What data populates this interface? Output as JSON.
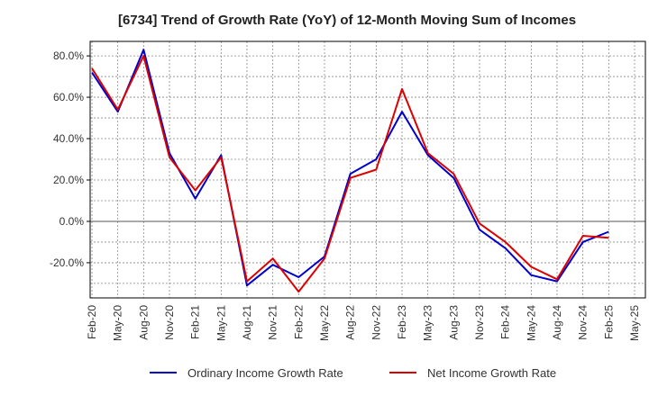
{
  "chart_data": {
    "type": "line",
    "title": "[6734]  Trend of Growth Rate (YoY) of 12-Month Moving Sum of Incomes",
    "xlabel": "",
    "ylabel": "",
    "x_tick_labels": [
      "Feb-20",
      "May-20",
      "Aug-20",
      "Nov-20",
      "Feb-21",
      "May-21",
      "Aug-21",
      "Nov-21",
      "Feb-22",
      "May-22",
      "Aug-22",
      "Nov-22",
      "Feb-23",
      "May-23",
      "Aug-23",
      "Nov-23",
      "Feb-24",
      "May-24",
      "Aug-24",
      "Nov-24",
      "Feb-25",
      "May-25"
    ],
    "y_tick_labels": [
      "80.0%",
      "60.0%",
      "40.0%",
      "20.0%",
      "0.0%",
      "-20.0%"
    ],
    "y_ticks": [
      80,
      60,
      40,
      20,
      0,
      -20
    ],
    "ylim": [
      -37,
      87
    ],
    "x_count": 22,
    "grid": true,
    "legend_position": "bottom",
    "series": [
      {
        "name": "Ordinary Income Growth Rate",
        "color": "#0000cc",
        "values": [
          72,
          53,
          83,
          33,
          11,
          32,
          -31,
          -21,
          -27,
          -17,
          23,
          30,
          53,
          32,
          21,
          -4,
          -13,
          -26,
          -29,
          -10,
          -5,
          null
        ]
      },
      {
        "name": "Net Income Growth Rate",
        "color": "#dd0000",
        "values": [
          74,
          54,
          80,
          31,
          15,
          31,
          -29,
          -18,
          -34,
          -18,
          21,
          25,
          64,
          33,
          23,
          -1,
          -10,
          -22,
          -28,
          -7,
          -8,
          null
        ]
      }
    ]
  }
}
